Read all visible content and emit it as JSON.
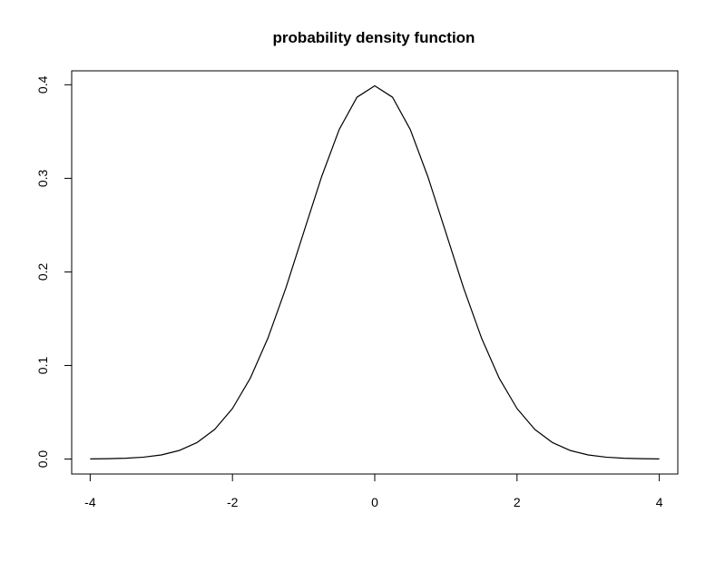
{
  "chart_data": {
    "type": "line",
    "title": "probability density function",
    "xlabel": "",
    "ylabel": "",
    "xlim": [
      -4.26,
      4.26
    ],
    "ylim": [
      -0.016,
      0.4149
    ],
    "x_ticks": [
      -4,
      -2,
      0,
      2,
      4
    ],
    "y_ticks": [
      0.0,
      0.1,
      0.2,
      0.3,
      0.4
    ],
    "x_tick_labels": [
      "-4",
      "-2",
      "0",
      "2",
      "4"
    ],
    "y_tick_labels": [
      "0.0",
      "0.1",
      "0.2",
      "0.3",
      "0.4"
    ],
    "grid": false,
    "series": [
      {
        "color": "#000000",
        "x": [
          -4.0,
          -3.75,
          -3.5,
          -3.25,
          -3.0,
          -2.75,
          -2.5,
          -2.25,
          -2.0,
          -1.75,
          -1.5,
          -1.25,
          -1.0,
          -0.75,
          -0.5,
          -0.25,
          0.0,
          0.25,
          0.5,
          0.75,
          1.0,
          1.25,
          1.5,
          1.75,
          2.0,
          2.25,
          2.5,
          2.75,
          3.0,
          3.25,
          3.5,
          3.75,
          4.0
        ],
        "y": [
          0.0001,
          0.0004,
          0.0009,
          0.002,
          0.0044,
          0.0091,
          0.0175,
          0.0317,
          0.054,
          0.0863,
          0.1295,
          0.1826,
          0.242,
          0.3011,
          0.3521,
          0.3867,
          0.3989,
          0.3867,
          0.3521,
          0.3011,
          0.242,
          0.1826,
          0.1295,
          0.0863,
          0.054,
          0.0317,
          0.0175,
          0.0091,
          0.0044,
          0.002,
          0.0009,
          0.0004,
          0.0001
        ]
      }
    ]
  }
}
